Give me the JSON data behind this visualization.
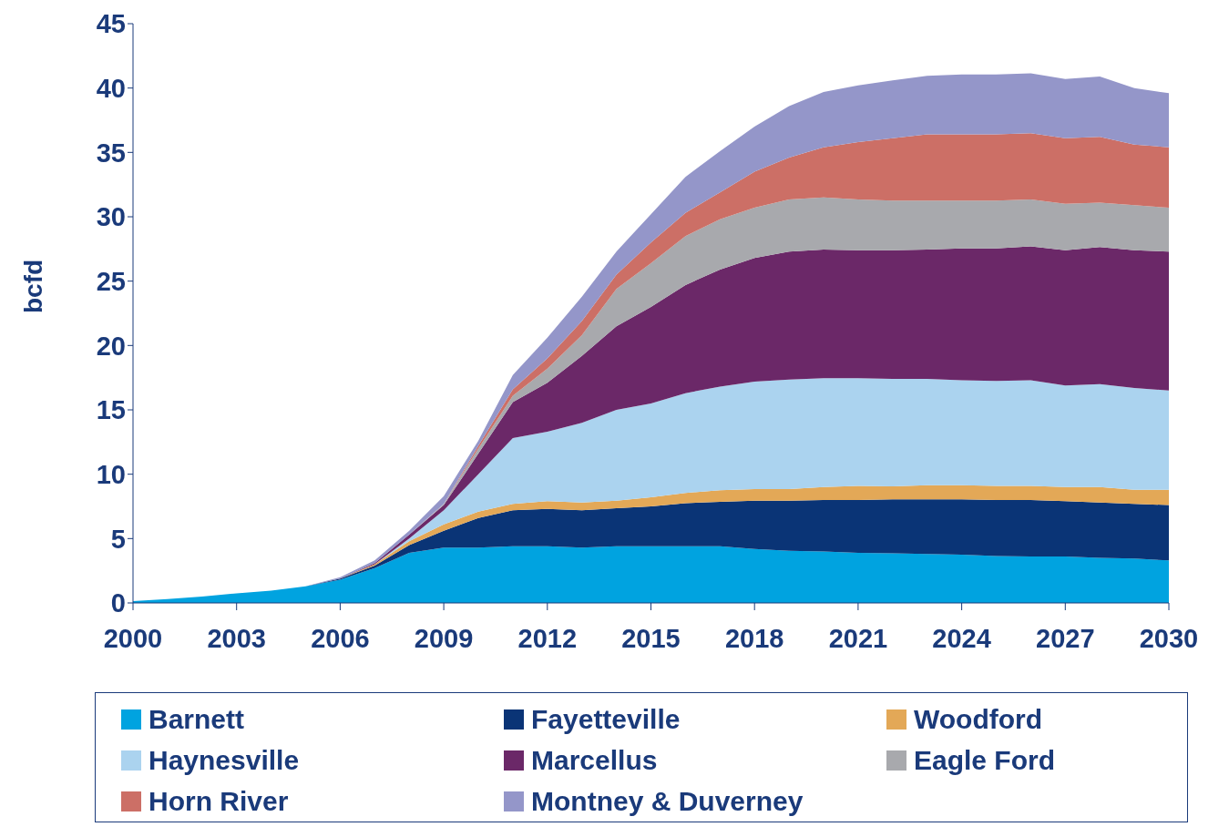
{
  "chart_data": {
    "type": "area",
    "stacked": true,
    "ylabel": "bcfd",
    "x": [
      2000,
      2001,
      2002,
      2003,
      2004,
      2005,
      2006,
      2007,
      2008,
      2009,
      2010,
      2011,
      2012,
      2013,
      2014,
      2015,
      2016,
      2017,
      2018,
      2019,
      2020,
      2021,
      2022,
      2023,
      2024,
      2025,
      2026,
      2027,
      2028,
      2029,
      2030
    ],
    "xlim": [
      2000,
      2030
    ],
    "xticks": [
      2000,
      2003,
      2006,
      2009,
      2012,
      2015,
      2018,
      2021,
      2024,
      2027,
      2030
    ],
    "ylim": [
      0,
      45
    ],
    "yticks": [
      0,
      5,
      10,
      15,
      20,
      25,
      30,
      35,
      40,
      45
    ],
    "grid": false,
    "legend": "bottom",
    "series": [
      {
        "name": "Barnett",
        "color": "#00a3e0",
        "values": [
          0.15,
          0.3,
          0.5,
          0.75,
          0.95,
          1.3,
          1.8,
          2.7,
          3.9,
          4.3,
          4.3,
          4.4,
          4.4,
          4.3,
          4.4,
          4.4,
          4.4,
          4.4,
          4.2,
          4.05,
          4.0,
          3.9,
          3.85,
          3.8,
          3.75,
          3.65,
          3.6,
          3.6,
          3.5,
          3.45,
          3.3
        ]
      },
      {
        "name": "Fayetteville",
        "color": "#0a3476",
        "values": [
          0,
          0,
          0,
          0,
          0,
          0,
          0.1,
          0.2,
          0.6,
          1.3,
          2.3,
          2.8,
          2.9,
          2.9,
          2.95,
          3.1,
          3.35,
          3.45,
          3.75,
          3.9,
          4.0,
          4.1,
          4.2,
          4.25,
          4.3,
          4.35,
          4.4,
          4.3,
          4.3,
          4.25,
          4.3
        ]
      },
      {
        "name": "Woodford",
        "color": "#e3a857",
        "values": [
          0,
          0,
          0,
          0,
          0,
          0,
          0,
          0.1,
          0.3,
          0.5,
          0.5,
          0.5,
          0.6,
          0.6,
          0.6,
          0.7,
          0.8,
          0.9,
          0.9,
          0.9,
          1.0,
          1.1,
          1.0,
          1.1,
          1.1,
          1.1,
          1.1,
          1.1,
          1.2,
          1.1,
          1.2
        ]
      },
      {
        "name": "Haynesville",
        "color": "#abd3ef",
        "values": [
          0,
          0,
          0,
          0,
          0,
          0,
          0,
          0,
          0.2,
          1.1,
          2.9,
          5.1,
          5.4,
          6.2,
          7.05,
          7.3,
          7.75,
          8.05,
          8.35,
          8.5,
          8.45,
          8.35,
          8.35,
          8.25,
          8.15,
          8.15,
          8.2,
          7.9,
          8.0,
          7.9,
          7.7
        ]
      },
      {
        "name": "Marcellus",
        "color": "#6b2868",
        "values": [
          0,
          0,
          0,
          0,
          0,
          0,
          0,
          0.1,
          0.3,
          0.4,
          1.6,
          2.8,
          3.8,
          5.2,
          6.5,
          7.5,
          8.4,
          9.1,
          9.6,
          9.95,
          10.0,
          9.95,
          10.0,
          10.05,
          10.25,
          10.3,
          10.4,
          10.5,
          10.65,
          10.7,
          10.8
        ]
      },
      {
        "name": "Eagle Ford",
        "color": "#a8a9ad",
        "values": [
          0,
          0,
          0,
          0,
          0,
          0,
          0,
          0,
          0,
          0.1,
          0.4,
          0.5,
          1.1,
          1.6,
          2.9,
          3.4,
          3.8,
          3.9,
          3.9,
          4.05,
          4.05,
          3.95,
          3.85,
          3.8,
          3.7,
          3.7,
          3.65,
          3.6,
          3.45,
          3.5,
          3.4
        ]
      },
      {
        "name": "Horn River",
        "color": "#cc6f66",
        "values": [
          0,
          0,
          0,
          0,
          0,
          0,
          0,
          0,
          0,
          0,
          0.2,
          0.5,
          0.8,
          1.1,
          1.1,
          1.6,
          1.8,
          2.1,
          2.8,
          3.25,
          3.9,
          4.45,
          4.85,
          5.15,
          5.15,
          5.15,
          5.15,
          5.1,
          5.1,
          4.7,
          4.7
        ]
      },
      {
        "name": "Montney & Duverney",
        "color": "#9496c9",
        "values": [
          0,
          0,
          0,
          0,
          0,
          0,
          0.1,
          0.2,
          0.3,
          0.6,
          0.4,
          1.1,
          1.6,
          1.9,
          1.8,
          2.2,
          2.8,
          3.2,
          3.5,
          4.0,
          4.3,
          4.4,
          4.5,
          4.55,
          4.65,
          4.65,
          4.65,
          4.6,
          4.7,
          4.4,
          4.2
        ]
      }
    ]
  }
}
